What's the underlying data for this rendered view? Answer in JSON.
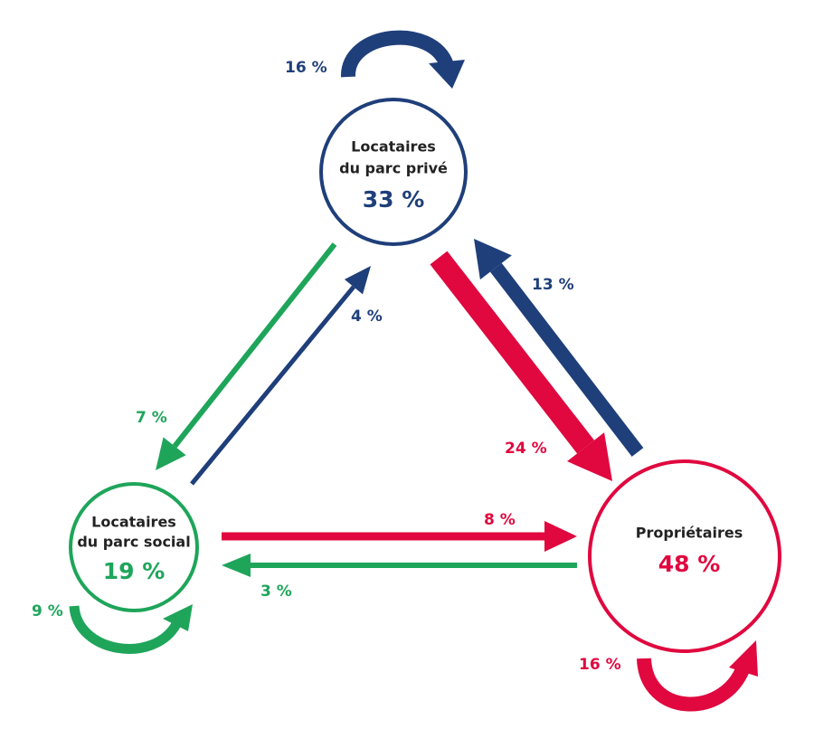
{
  "nodes": [
    {
      "label_lines": [
        "Locataires",
        "du parc privé"
      ],
      "share": "33 %"
    },
    {
      "label_lines": [
        "Locataires",
        "du parc social"
      ],
      "share": "19 %"
    },
    {
      "label_lines": [
        "Propriétaires"
      ],
      "share": "48 %"
    }
  ],
  "flows": [
    {
      "label": "16 %"
    },
    {
      "label": "7 %"
    },
    {
      "label": "4 %"
    },
    {
      "label": "24 %"
    },
    {
      "label": "13 %"
    },
    {
      "label": "8 %"
    },
    {
      "label": "3 %"
    },
    {
      "label": "9 %"
    },
    {
      "label": "16 %"
    }
  ]
}
